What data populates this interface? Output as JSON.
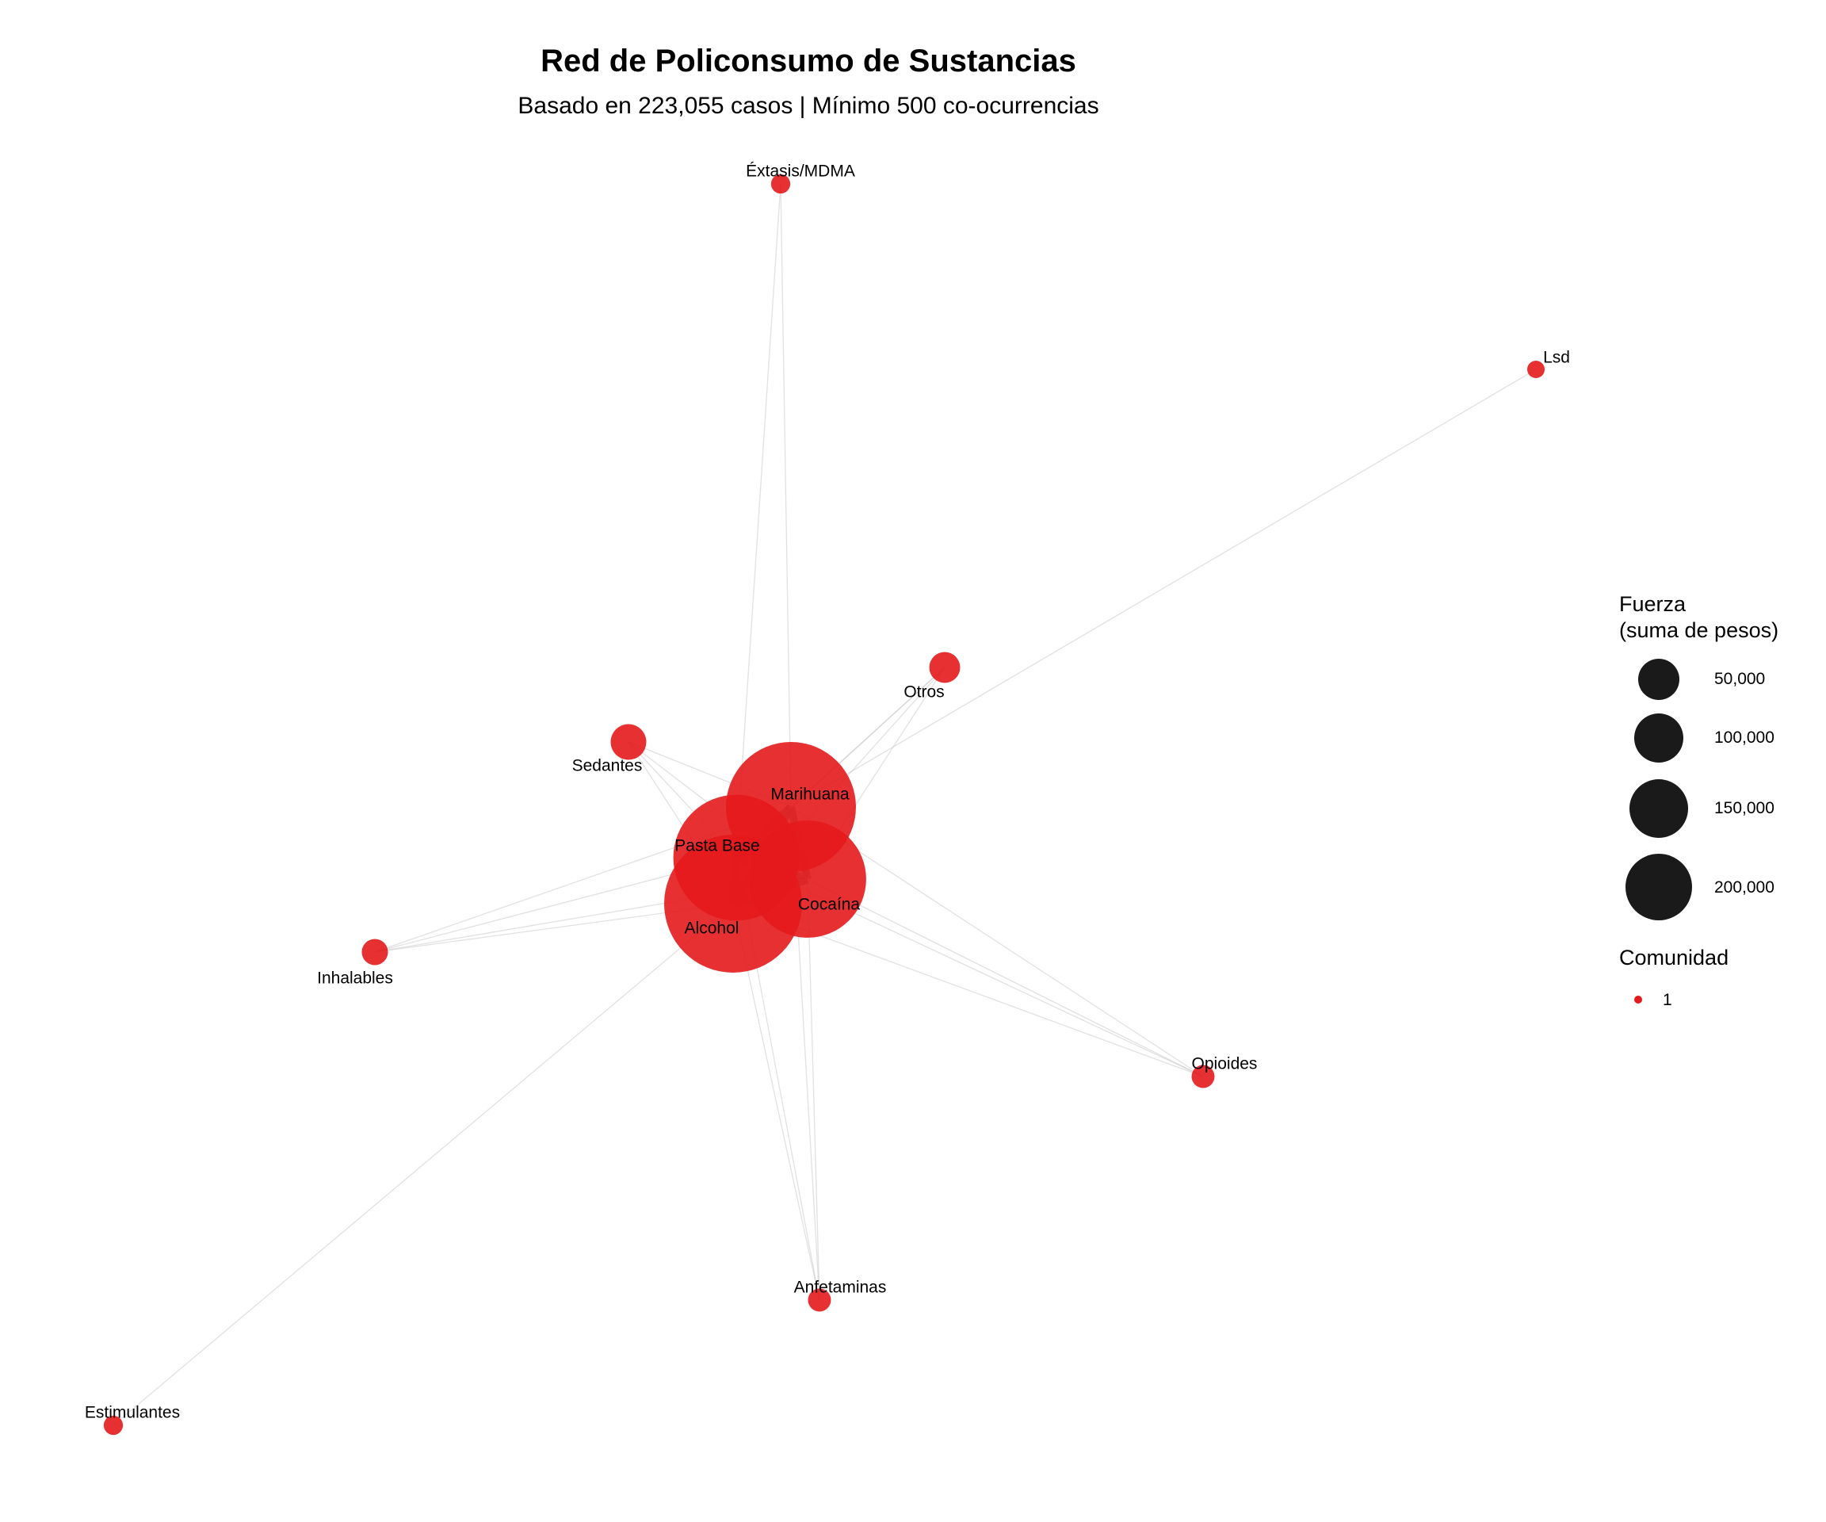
{
  "title": "Red de Policonsumo de Sustancias",
  "subtitle": "Basado en 223,055 casos | Mínimo 500 co-ocurrencias",
  "colors": {
    "community_1": "#e41a1c",
    "edge": "#8c8c8c",
    "legend_key": "#1a1a1a"
  },
  "legend": {
    "size_title_line1": "Fuerza",
    "size_title_line2": "(suma de pesos)",
    "size_items": [
      {
        "label": "50,000",
        "value": 50000
      },
      {
        "label": "100,000",
        "value": 100000
      },
      {
        "label": "150,000",
        "value": 150000
      },
      {
        "label": "200,000",
        "value": 200000
      }
    ],
    "community_title": "Comunidad",
    "community_items": [
      {
        "label": "1",
        "color": "#e41a1c"
      }
    ]
  },
  "chart_data": {
    "type": "network",
    "nodes": [
      {
        "id": "marihuana",
        "label": "Marihuana",
        "strength": 160000,
        "community": 1
      },
      {
        "id": "pasta_base",
        "label": "Pasta Base",
        "strength": 150000,
        "community": 1
      },
      {
        "id": "cocaina",
        "label": "Cocaína",
        "strength": 130000,
        "community": 1
      },
      {
        "id": "alcohol",
        "label": "Alcohol",
        "strength": 180000,
        "community": 1
      },
      {
        "id": "sedantes",
        "label": "Sedantes",
        "strength": 12000,
        "community": 1
      },
      {
        "id": "otros",
        "label": "Otros",
        "strength": 9000,
        "community": 1
      },
      {
        "id": "inhalables",
        "label": "Inhalables",
        "strength": 6500,
        "community": 1
      },
      {
        "id": "opioides",
        "label": "Opioides",
        "strength": 5000,
        "community": 1
      },
      {
        "id": "anfetaminas",
        "label": "Anfetaminas",
        "strength": 5000,
        "community": 1
      },
      {
        "id": "extasis",
        "label": "Éxtasis/MDMA",
        "strength": 3500,
        "community": 1
      },
      {
        "id": "lsd",
        "label": "Lsd",
        "strength": 2000,
        "community": 1
      },
      {
        "id": "estimulantes",
        "label": "Estimulantes",
        "strength": 3500,
        "community": 1
      }
    ],
    "edges": [
      {
        "source": "marihuana",
        "target": "pasta_base",
        "weight": 30000
      },
      {
        "source": "marihuana",
        "target": "cocaina",
        "weight": 28000
      },
      {
        "source": "marihuana",
        "target": "alcohol",
        "weight": 32000
      },
      {
        "source": "pasta_base",
        "target": "cocaina",
        "weight": 30000
      },
      {
        "source": "pasta_base",
        "target": "alcohol",
        "weight": 34000
      },
      {
        "source": "cocaina",
        "target": "alcohol",
        "weight": 36000
      },
      {
        "source": "sedantes",
        "target": "marihuana",
        "weight": 2000
      },
      {
        "source": "sedantes",
        "target": "pasta_base",
        "weight": 2500
      },
      {
        "source": "sedantes",
        "target": "cocaina",
        "weight": 2000
      },
      {
        "source": "sedantes",
        "target": "alcohol",
        "weight": 3000
      },
      {
        "source": "otros",
        "target": "marihuana",
        "weight": 1500
      },
      {
        "source": "otros",
        "target": "pasta_base",
        "weight": 1500
      },
      {
        "source": "otros",
        "target": "cocaina",
        "weight": 1200
      },
      {
        "source": "otros",
        "target": "alcohol",
        "weight": 2000
      },
      {
        "source": "inhalables",
        "target": "marihuana",
        "weight": 1000
      },
      {
        "source": "inhalables",
        "target": "pasta_base",
        "weight": 1200
      },
      {
        "source": "inhalables",
        "target": "cocaina",
        "weight": 1000
      },
      {
        "source": "inhalables",
        "target": "alcohol",
        "weight": 1500
      },
      {
        "source": "opioides",
        "target": "marihuana",
        "weight": 800
      },
      {
        "source": "opioides",
        "target": "pasta_base",
        "weight": 900
      },
      {
        "source": "opioides",
        "target": "cocaina",
        "weight": 900
      },
      {
        "source": "opioides",
        "target": "alcohol",
        "weight": 1000
      },
      {
        "source": "anfetaminas",
        "target": "marihuana",
        "weight": 800
      },
      {
        "source": "anfetaminas",
        "target": "pasta_base",
        "weight": 700
      },
      {
        "source": "anfetaminas",
        "target": "cocaina",
        "weight": 900
      },
      {
        "source": "anfetaminas",
        "target": "alcohol",
        "weight": 900
      },
      {
        "source": "extasis",
        "target": "marihuana",
        "weight": 600
      },
      {
        "source": "extasis",
        "target": "alcohol",
        "weight": 600
      },
      {
        "source": "lsd",
        "target": "marihuana",
        "weight": 500
      },
      {
        "source": "estimulantes",
        "target": "alcohol",
        "weight": 500
      }
    ]
  }
}
